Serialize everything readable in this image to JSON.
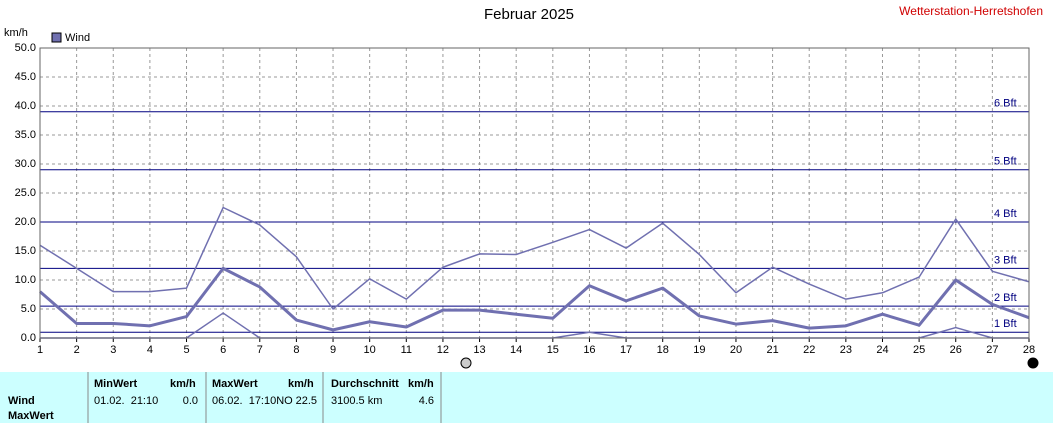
{
  "chart_data": {
    "type": "line",
    "title": "Februar 2025",
    "station": "Wetterstation-Herretshofen",
    "y_label": "km/h",
    "x": [
      1,
      2,
      3,
      4,
      5,
      6,
      7,
      8,
      9,
      10,
      11,
      12,
      13,
      14,
      15,
      16,
      17,
      18,
      19,
      20,
      21,
      22,
      23,
      24,
      25,
      26,
      27,
      28
    ],
    "xlim": [
      1,
      28
    ],
    "xticks": [
      1,
      2,
      3,
      4,
      5,
      6,
      7,
      8,
      9,
      10,
      11,
      12,
      13,
      14,
      15,
      16,
      17,
      18,
      19,
      20,
      21,
      22,
      23,
      24,
      25,
      26,
      27,
      28
    ],
    "ylim": [
      0,
      50
    ],
    "yticks": [
      {
        "value": 0,
        "label": "0.0"
      },
      {
        "value": 5,
        "label": "5.0"
      },
      {
        "value": 10,
        "label": "10.0"
      },
      {
        "value": 15,
        "label": "15.0"
      },
      {
        "value": 20,
        "label": "20.0"
      },
      {
        "value": 25,
        "label": "25.0"
      },
      {
        "value": 30,
        "label": "30.0"
      },
      {
        "value": 35,
        "label": "35.0"
      },
      {
        "value": 40,
        "label": "40.0"
      },
      {
        "value": 45,
        "label": "45.0"
      },
      {
        "value": 50,
        "label": "50.0"
      }
    ],
    "grid": true,
    "beaufort": [
      {
        "value": 1,
        "label": "1 Bft"
      },
      {
        "value": 5.5,
        "label": "2 Bft"
      },
      {
        "value": 12,
        "label": "3 Bft"
      },
      {
        "value": 20,
        "label": "4 Bft"
      },
      {
        "value": 29,
        "label": "5 Bft"
      },
      {
        "value": 39,
        "label": "6 Bft"
      }
    ],
    "beaufort_color": "#000080",
    "series": [
      {
        "name": "Wind",
        "color": "#7070b0",
        "width": 3,
        "values": [
          8,
          2.5,
          2.5,
          2.1,
          3.7,
          12,
          8.8,
          3.1,
          1.4,
          2.8,
          1.9,
          4.8,
          4.8,
          4.1,
          3.4,
          9,
          6.4,
          8.6,
          3.8,
          2.4,
          3,
          1.7,
          2.1,
          4.1,
          2.2,
          10,
          5.8,
          3.5
        ]
      },
      {
        "color": "#7070b0",
        "width": 1.5,
        "values": [
          16,
          12,
          8,
          8,
          8.6,
          22.5,
          19.5,
          14,
          5,
          10.2,
          6.7,
          12.2,
          14.5,
          14.4,
          16.5,
          18.7,
          15.5,
          19.8,
          14.4,
          7.8,
          12.2,
          9.3,
          6.7,
          7.8,
          10.5,
          20.5,
          11.5,
          9.7
        ]
      },
      {
        "color": "#7070b0",
        "width": 1.5,
        "values": [
          0,
          0,
          0,
          0,
          0,
          4.3,
          0,
          0,
          0,
          0,
          0,
          0,
          0,
          0,
          0,
          1,
          0,
          0,
          0,
          0,
          0,
          0,
          0,
          0,
          0,
          1.8,
          0,
          0
        ]
      }
    ]
  },
  "summary_table": {
    "row_labels": [
      "Wind",
      "MaxWert"
    ],
    "columns": [
      {
        "header": "MinWert",
        "unit": "km/h",
        "text": "01.02.  21:10",
        "value": "0.0"
      },
      {
        "header": "MaxWert",
        "unit": "km/h",
        "text": "06.02.  17:10NO",
        "value": "22.5"
      },
      {
        "header": "Durchschnitt",
        "unit": "km/h",
        "text": "3100.5 km",
        "value": "4.6"
      }
    ]
  }
}
